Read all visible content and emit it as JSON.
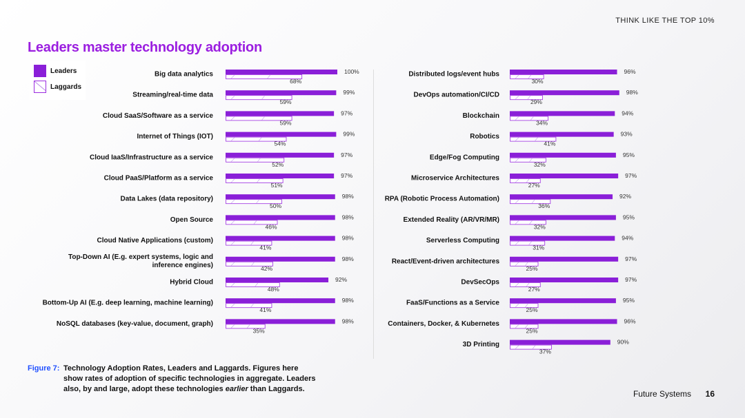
{
  "header": {
    "tagline": "THINK LIKE THE TOP 10%"
  },
  "title": "Leaders master technology adoption",
  "legend": {
    "leaders": "Leaders",
    "laggards": "Laggards"
  },
  "colors": {
    "leaders": "#8a1fd8",
    "laggards_outline": "#9b2be0",
    "laggards_fill": "#ffffff",
    "title": "#9b1ee0",
    "figure_label": "#1f4fff"
  },
  "chart_data": [
    {
      "type": "bar",
      "orientation": "horizontal",
      "xlim": [
        0,
        100
      ],
      "value_suffix": "%",
      "categories": [
        "Big data analytics",
        "Streaming/real-time data",
        "Cloud SaaS/Software as a service",
        "Internet of Things (IOT)",
        "Cloud IaaS/Infrastructure as a service",
        "Cloud PaaS/Platform as a service",
        "Data Lakes (data repository)",
        "Open Source",
        "Cloud Native Applications (custom)",
        "Top-Down AI (E.g. expert systems, logic and|inference engines)",
        "Hybrid Cloud",
        "Bottom-Up AI (E.g. deep learning, machine learning)",
        "NoSQL databases (key-value, document, graph)"
      ],
      "series": [
        {
          "name": "Leaders",
          "values": [
            100,
            99,
            97,
            99,
            97,
            97,
            98,
            98,
            98,
            98,
            92,
            98,
            98
          ]
        },
        {
          "name": "Laggards",
          "values": [
            68,
            59,
            59,
            54,
            52,
            51,
            50,
            46,
            41,
            42,
            48,
            41,
            35
          ]
        }
      ]
    },
    {
      "type": "bar",
      "orientation": "horizontal",
      "xlim": [
        0,
        100
      ],
      "value_suffix": "%",
      "categories": [
        "Distributed logs/event hubs",
        "DevOps automation/CI/CD",
        "Blockchain",
        "Robotics",
        "Edge/Fog Computing",
        "Microservice Architectures",
        "RPA (Robotic Process Automation)",
        "Extended Reality (AR/VR/MR)",
        "Serverless Computing",
        "React/Event-driven architectures",
        "DevSecOps",
        "FaaS/Functions as a Service",
        "Containers, Docker, & Kubernetes",
        "3D Printing"
      ],
      "series": [
        {
          "name": "Leaders",
          "values": [
            96,
            98,
            94,
            93,
            95,
            97,
            92,
            95,
            94,
            97,
            97,
            95,
            96,
            90
          ]
        },
        {
          "name": "Laggards",
          "values": [
            30,
            29,
            34,
            41,
            32,
            27,
            36,
            32,
            31,
            25,
            27,
            25,
            25,
            37
          ]
        }
      ]
    }
  ],
  "caption": {
    "figure_label": "Figure 7:",
    "line1": "Technology Adoption Rates, Leaders and Laggards. Figures here",
    "line2": "show rates of adoption of specific technologies in aggregate. Leaders",
    "line3_prefix": "also, by and large, adopt these technologies ",
    "line3_em": "earlier",
    "line3_suffix": " than Laggards."
  },
  "footer": {
    "section": "Future Systems",
    "page_number": "16"
  }
}
